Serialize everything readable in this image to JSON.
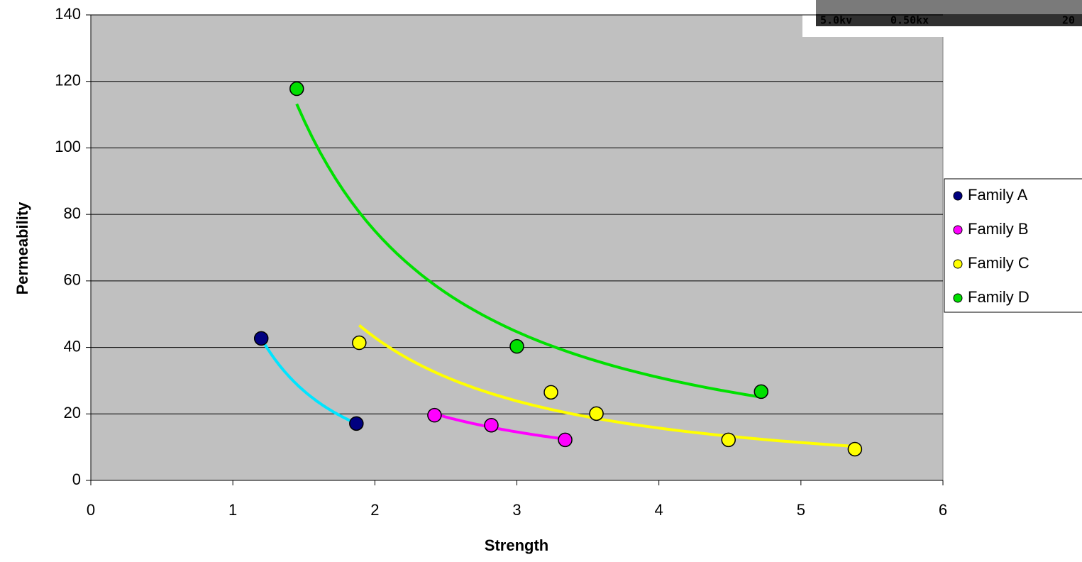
{
  "chart_data": {
    "type": "scatter",
    "xlabel": "Strength",
    "ylabel": "Permeability",
    "xlim": [
      0,
      6
    ],
    "xticks": [
      0,
      1,
      2,
      3,
      4,
      5,
      6
    ],
    "ylim": [
      0,
      140
    ],
    "yticks": [
      0,
      20,
      40,
      60,
      80,
      100,
      120,
      140
    ],
    "grid": true,
    "legend": "right",
    "trendline": "power",
    "series": [
      {
        "name": "Family A",
        "color": "#000080",
        "trendline_color": "#00e5ff",
        "x": [
          1.2,
          1.87
        ],
        "values": [
          42.7,
          17.1
        ]
      },
      {
        "name": "Family B",
        "color": "#ff00ff",
        "trendline_color": "#ff00ff",
        "x": [
          2.42,
          2.82,
          3.34
        ],
        "values": [
          19.6,
          16.6,
          12.2
        ]
      },
      {
        "name": "Family C",
        "color": "#ffff00",
        "trendline_color": "#ffff00",
        "x": [
          1.89,
          3.24,
          3.56,
          4.49,
          5.38
        ],
        "values": [
          41.4,
          26.5,
          20.1,
          12.2,
          9.4
        ]
      },
      {
        "name": "Family D",
        "color": "#00e000",
        "trendline_color": "#00e000",
        "x": [
          1.45,
          3.0,
          4.72
        ],
        "values": [
          117.8,
          40.3,
          26.7
        ]
      }
    ]
  },
  "inset": {
    "labels": [
      "5.0kv",
      "0.50kx",
      "20"
    ]
  }
}
